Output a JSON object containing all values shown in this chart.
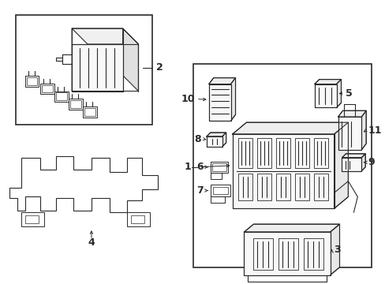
{
  "bg_color": "#ffffff",
  "line_color": "#2a2a2a",
  "lw": 0.8,
  "fig_w": 4.89,
  "fig_h": 3.6,
  "dpi": 100
}
